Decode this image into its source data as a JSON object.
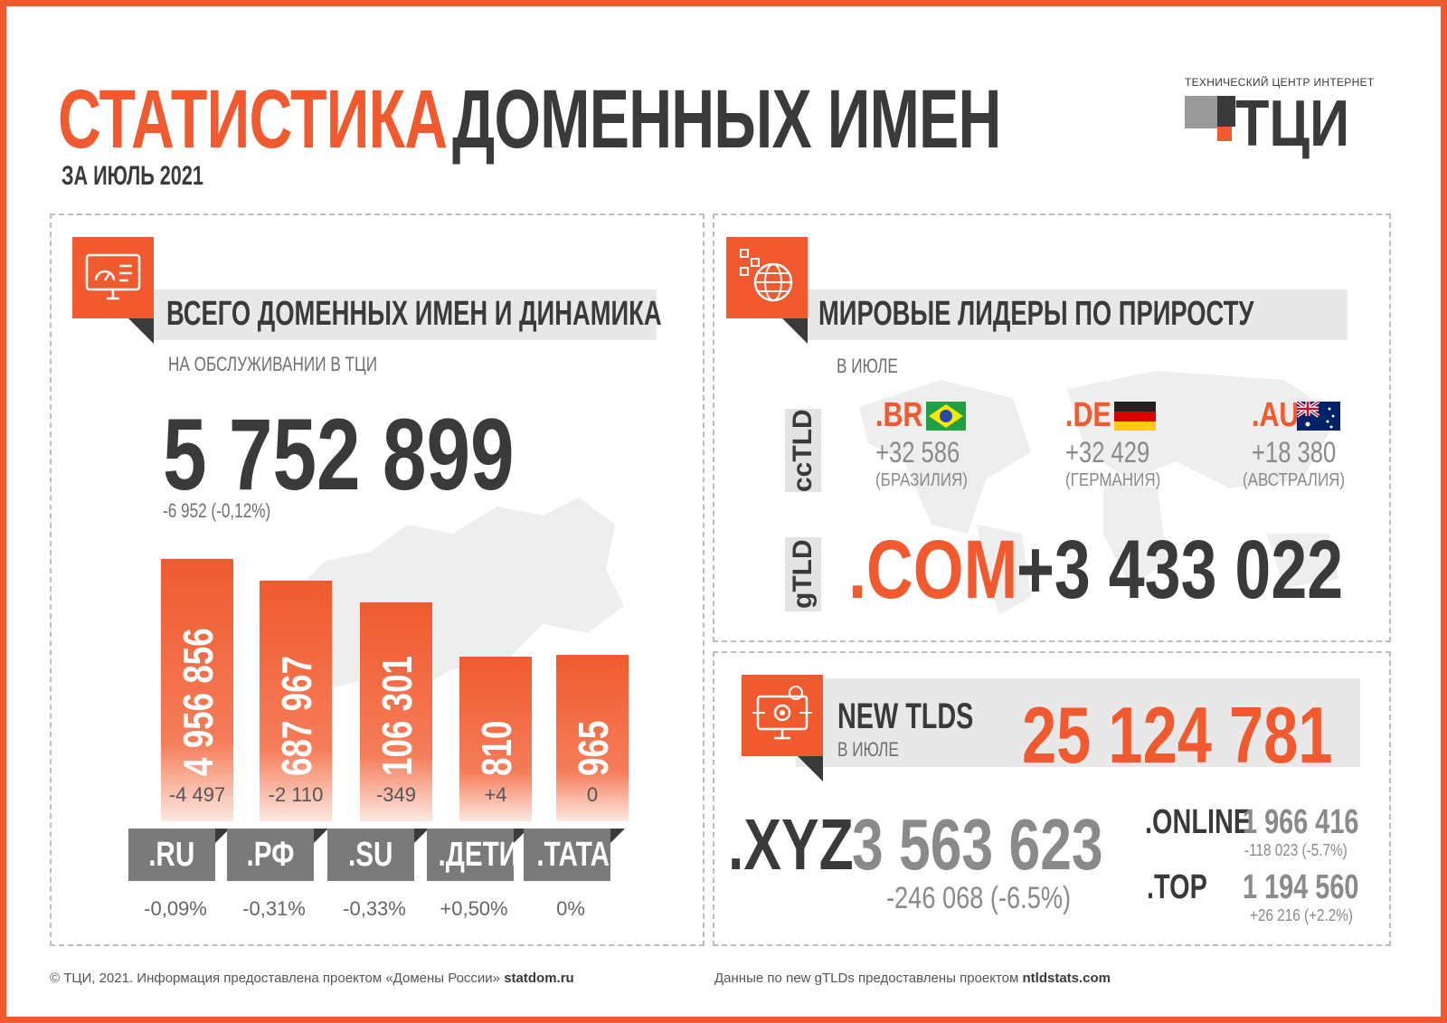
{
  "header": {
    "title_accent": "СТАТИСТИКА",
    "title_main": "ДОМЕННЫХ ИМЕН",
    "period": "ЗА ИЮЛЬ 2021",
    "logo_caption": "ТЕХНИЧЕСКИЙ ЦЕНТР ИНТЕРНЕТ",
    "logo_text": "ТЦИ"
  },
  "total": {
    "heading": "ВСЕГО ДОМЕННЫХ ИМЕН И ДИНАМИКА",
    "subheading": "НА ОБСЛУЖИВАНИИ В ТЦИ",
    "value": "5 752 899",
    "change": "-6 952 (-0,12%)"
  },
  "chart_data": {
    "type": "bar",
    "categories": [
      ".RU",
      ".РФ",
      ".SU",
      ".ДЕТИ",
      ".TATAR"
    ],
    "values": [
      4956856,
      687967,
      106301,
      810,
      965
    ],
    "value_labels": [
      "4 956 856",
      "687 967",
      "106 301",
      "810",
      "965"
    ],
    "changes": [
      "-4 497",
      "-2 110",
      "-349",
      "+4",
      "0"
    ],
    "change_pct": [
      "-0,09%",
      "-0,31%",
      "-0,33%",
      "+0,50%",
      "0%"
    ],
    "title": "",
    "xlabel": "",
    "ylabel": ""
  },
  "leaders": {
    "heading": "МИРОВЫЕ ЛИДЕРЫ ПО ПРИРОСТУ",
    "subheading": "В ИЮЛЕ",
    "cctld_tag": "ccTLD",
    "gtld_tag": "gTLD",
    "cctld": [
      {
        "tld": ".BR",
        "value": "+32 586",
        "country": "(БРАЗИЛИЯ)",
        "flag": "brazil-flag"
      },
      {
        "tld": ".DE",
        "value": "+32 429",
        "country": "(ГЕРМАНИЯ)",
        "flag": "germany-flag"
      },
      {
        "tld": ".AU",
        "value": "+18 380",
        "country": "(АВСТРАЛИЯ)",
        "flag": "australia-flag"
      }
    ],
    "gtld": {
      "tld": ".COM",
      "value": "+3 433 022"
    }
  },
  "new_tlds": {
    "heading": "NEW TLDS",
    "subheading": "В ИЮЛЕ",
    "total": "25 124 781",
    "xyz": {
      "tld": ".XYZ",
      "value": "3 563 623",
      "change": "-246 068 (-6.5%)"
    },
    "online": {
      "tld": ".ONLINE",
      "value": "1 966 416",
      "change": "-118 023 (-5.7%)"
    },
    "top": {
      "tld": ".TOP",
      "value": "1 194 560",
      "change": "+26 216 (+2.2%)"
    }
  },
  "footer": {
    "left_text": "© ТЦИ, 2021.  Информация предоставлена проектом «Домены России»",
    "left_link": "statdom.ru",
    "right_text": "Данные по new gTLDs предоставлены проектом",
    "right_link": "ntldstats.com"
  },
  "colors": {
    "accent": "#f05a2e",
    "dark": "#3a3a3a",
    "gray": "#7a7a7a"
  }
}
